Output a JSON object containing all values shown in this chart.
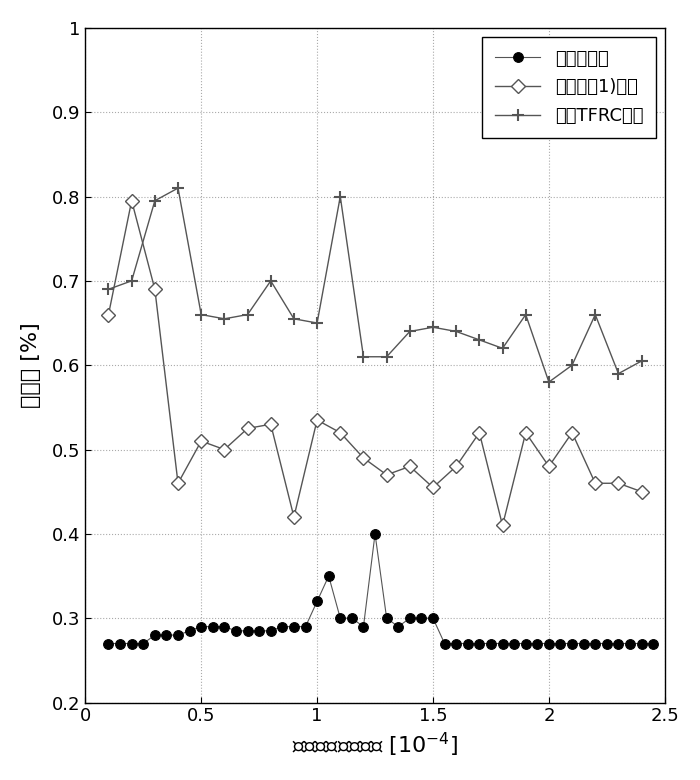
{
  "title": "",
  "xlabel": "无线平均误字节率 [10⁻⁴]",
  "ylabel": "丢包率 [%]",
  "xlim": [
    0,
    2.5
  ],
  "ylim": [
    0.2,
    1.0
  ],
  "xticks": [
    0,
    0.5,
    1.0,
    1.5,
    2.0,
    2.5
  ],
  "yticks": [
    0.2,
    0.3,
    0.4,
    0.5,
    0.6,
    0.7,
    0.8,
    0.9,
    1.0
  ],
  "grid_color": "#aaaaaa",
  "bg_color": "#ffffff",
  "series1_label": "本发明方法",
  "series2_label": "现有技术1)方法",
  "series3_label": "原始TFRC方法",
  "series1_x": [
    0.1,
    0.15,
    0.2,
    0.25,
    0.3,
    0.35,
    0.4,
    0.45,
    0.5,
    0.55,
    0.6,
    0.65,
    0.7,
    0.75,
    0.8,
    0.85,
    0.9,
    0.95,
    1.0,
    1.05,
    1.1,
    1.15,
    1.2,
    1.25,
    1.3,
    1.35,
    1.4,
    1.45,
    1.5,
    1.55,
    1.6,
    1.65,
    1.7,
    1.75,
    1.8,
    1.85,
    1.9,
    1.95,
    2.0,
    2.05,
    2.1,
    2.15,
    2.2,
    2.25,
    2.3,
    2.35,
    2.4,
    2.45
  ],
  "series1_y": [
    0.27,
    0.27,
    0.27,
    0.27,
    0.28,
    0.28,
    0.28,
    0.285,
    0.29,
    0.29,
    0.29,
    0.285,
    0.285,
    0.285,
    0.285,
    0.29,
    0.29,
    0.29,
    0.32,
    0.35,
    0.3,
    0.3,
    0.29,
    0.4,
    0.3,
    0.29,
    0.3,
    0.3,
    0.3,
    0.27,
    0.27,
    0.27,
    0.27,
    0.27,
    0.27,
    0.27,
    0.27,
    0.27,
    0.27,
    0.27,
    0.27,
    0.27,
    0.27,
    0.27,
    0.27,
    0.27,
    0.27,
    0.27
  ],
  "series2_x": [
    0.1,
    0.2,
    0.3,
    0.4,
    0.5,
    0.6,
    0.7,
    0.8,
    0.9,
    1.0,
    1.1,
    1.2,
    1.3,
    1.4,
    1.5,
    1.6,
    1.7,
    1.8,
    1.9,
    2.0,
    2.1,
    2.2,
    2.3,
    2.4
  ],
  "series2_y": [
    0.66,
    0.795,
    0.69,
    0.46,
    0.51,
    0.5,
    0.525,
    0.53,
    0.42,
    0.535,
    0.52,
    0.49,
    0.47,
    0.48,
    0.455,
    0.48,
    0.52,
    0.41,
    0.52,
    0.48,
    0.52,
    0.46,
    0.46,
    0.45
  ],
  "series3_x": [
    0.1,
    0.2,
    0.3,
    0.4,
    0.5,
    0.6,
    0.7,
    0.8,
    0.9,
    1.0,
    1.1,
    1.2,
    1.3,
    1.4,
    1.5,
    1.6,
    1.7,
    1.8,
    1.9,
    2.0,
    2.1,
    2.2,
    2.3,
    2.4
  ],
  "series3_y": [
    0.69,
    0.7,
    0.795,
    0.81,
    0.66,
    0.655,
    0.66,
    0.7,
    0.655,
    0.65,
    0.8,
    0.61,
    0.61,
    0.64,
    0.645,
    0.64,
    0.63,
    0.62,
    0.66,
    0.58,
    0.6,
    0.66,
    0.59,
    0.605
  ],
  "line_color": "#555555",
  "series1_marker_color": "#000000"
}
